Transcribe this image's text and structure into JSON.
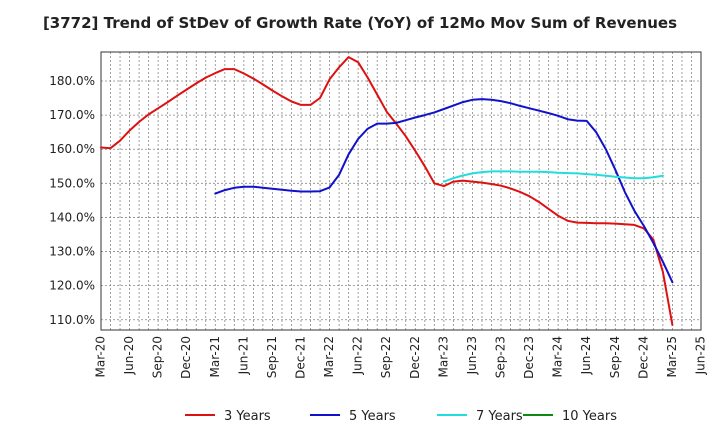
{
  "chart_data": {
    "type": "line",
    "title": "[3772]  Trend of StDev of Growth Rate (YoY) of 12Mo Mov Sum of Revenues",
    "xlabel": "",
    "ylabel": "",
    "x_ticks": [
      "Mar-20",
      "Jun-20",
      "Sep-20",
      "Dec-20",
      "Mar-21",
      "Jun-21",
      "Sep-21",
      "Dec-21",
      "Mar-22",
      "Jun-22",
      "Sep-22",
      "Dec-22",
      "Mar-23",
      "Jun-23",
      "Sep-23",
      "Dec-23",
      "Mar-24",
      "Jun-24",
      "Sep-24",
      "Dec-24",
      "Mar-25",
      "Jun-25"
    ],
    "y_ticks": [
      110,
      120,
      130,
      140,
      150,
      160,
      170,
      180
    ],
    "y_tick_suffix": "%",
    "y_tick_decimals": 1,
    "xlim": [
      0,
      63
    ],
    "ylim": [
      107,
      188.5
    ],
    "grid": true,
    "legend_position": "bottom",
    "series": [
      {
        "name": "3 Years",
        "color": "#dd1111",
        "x_start": 0,
        "values": [
          160.5,
          160.3,
          162.5,
          165.5,
          168.0,
          170.2,
          172.0,
          173.8,
          175.7,
          177.5,
          179.3,
          181.0,
          182.3,
          183.5,
          183.5,
          182.2,
          180.7,
          179.0,
          177.2,
          175.5,
          174.0,
          173.0,
          173.0,
          175.0,
          180.5,
          184.0,
          187.0,
          185.5,
          181.0,
          176.0,
          171.0,
          167.5,
          163.8,
          159.5,
          155.0,
          150.0,
          149.2,
          150.5,
          150.8,
          150.5,
          150.2,
          149.8,
          149.3,
          148.5,
          147.5,
          146.2,
          144.5,
          142.5,
          140.5,
          139.0,
          138.5,
          138.4,
          138.3,
          138.3,
          138.2,
          138.0,
          137.8,
          136.8,
          133.5,
          124.0,
          108.5
        ]
      },
      {
        "name": "5 Years",
        "color": "#1111cc",
        "x_start": 12,
        "values": [
          147.0,
          148.0,
          148.7,
          149.0,
          149.0,
          148.7,
          148.4,
          148.1,
          147.8,
          147.6,
          147.6,
          147.7,
          148.8,
          152.5,
          158.5,
          163.0,
          166.0,
          167.5,
          167.5,
          167.7,
          168.5,
          169.3,
          170.0,
          170.8,
          171.8,
          172.8,
          173.8,
          174.5,
          174.7,
          174.5,
          174.1,
          173.5,
          172.7,
          172.0,
          171.3,
          170.6,
          169.8,
          168.8,
          168.4,
          168.3,
          165.0,
          160.0,
          154.0,
          147.5,
          142.0,
          137.5,
          132.5,
          127.0,
          121.0
        ]
      },
      {
        "name": "7 Years",
        "color": "#22dddd",
        "x_start": 36,
        "values": [
          150.5,
          151.5,
          152.3,
          152.9,
          153.3,
          153.5,
          153.5,
          153.5,
          153.4,
          153.4,
          153.4,
          153.3,
          153.1,
          153.0,
          152.9,
          152.7,
          152.5,
          152.2,
          151.9,
          151.7,
          151.5,
          151.5,
          151.8,
          152.2
        ]
      },
      {
        "name": "10 Years",
        "color": "#118811",
        "x_start": 0,
        "values": []
      }
    ]
  }
}
